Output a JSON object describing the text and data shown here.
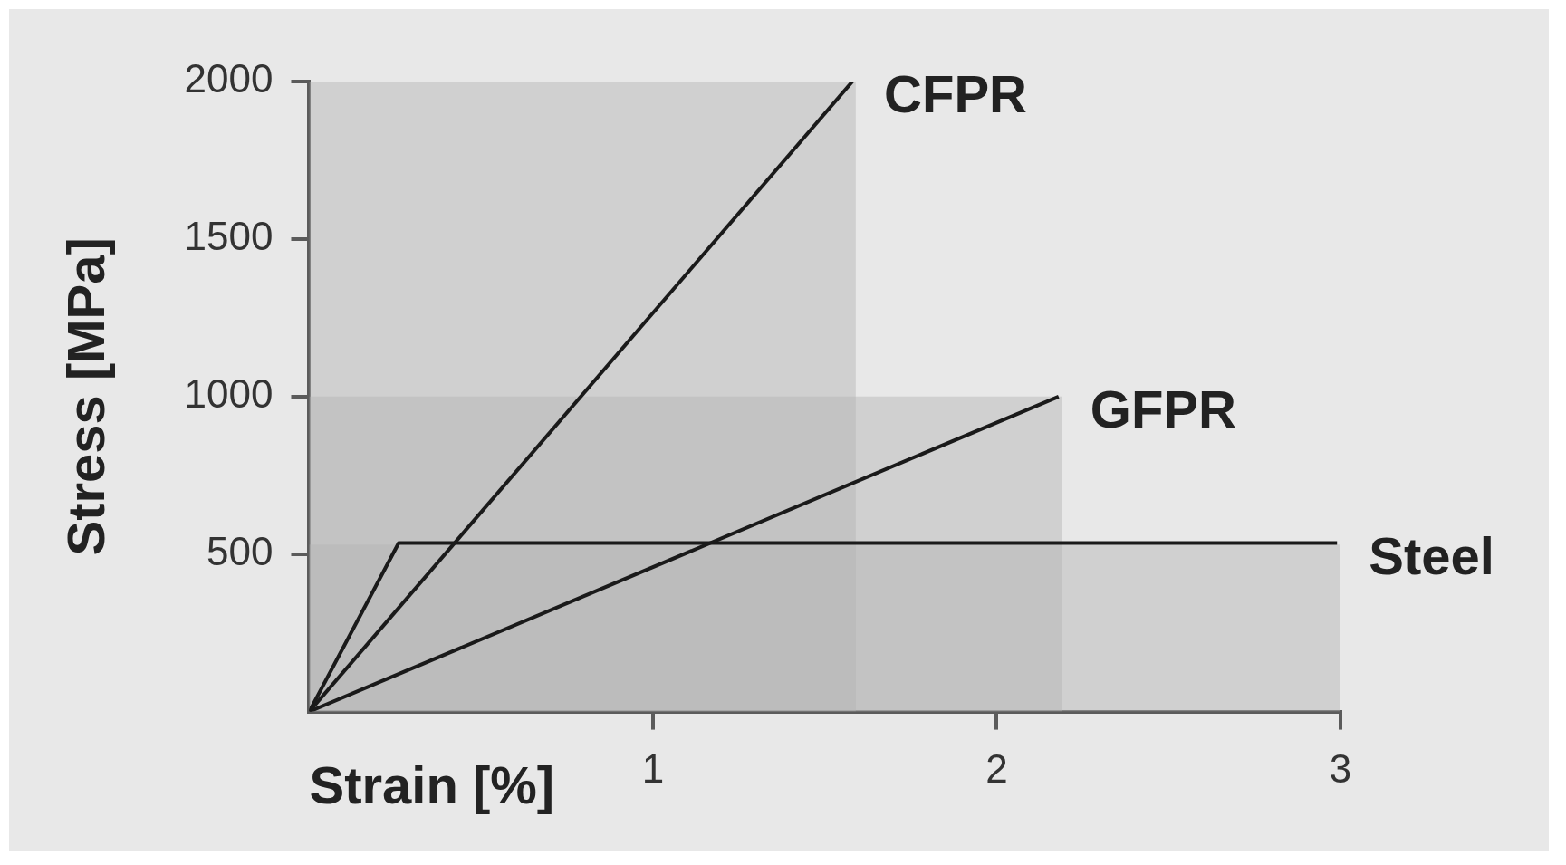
{
  "chart_data": {
    "type": "line",
    "xlabel": "Strain [%]",
    "ylabel": "Stress [MPa]",
    "xlim": [
      0,
      3
    ],
    "ylim": [
      0,
      2000
    ],
    "xticks": [
      1,
      2,
      3
    ],
    "yticks": [
      500,
      1000,
      1500,
      2000
    ],
    "grid": false,
    "legend": false,
    "marker": "none",
    "line_style": "solid",
    "series": [
      {
        "type": "area",
        "color": "#b4b4b4",
        "x": [
          0,
          1.59
        ],
        "values": [
          2000,
          2000
        ]
      },
      {
        "type": "area",
        "color": "#b4b4b4",
        "x": [
          0,
          2.19
        ],
        "values": [
          1000,
          1000
        ]
      },
      {
        "type": "area",
        "color": "#b4b4b4",
        "x": [
          0,
          3
        ],
        "values": [
          530,
          530
        ]
      },
      {
        "type": "line",
        "name": "CFPR",
        "color": "#1a1a1a",
        "x": [
          0,
          1.58
        ],
        "values": [
          0,
          2000
        ]
      },
      {
        "type": "line",
        "name": "GFPR",
        "color": "#1a1a1a",
        "x": [
          0,
          2.18
        ],
        "values": [
          0,
          1000
        ]
      },
      {
        "type": "line",
        "name": "Steel",
        "color": "#1a1a1a",
        "x": [
          0,
          0.26,
          2.99
        ],
        "values": [
          0,
          535,
          535
        ]
      }
    ]
  }
}
